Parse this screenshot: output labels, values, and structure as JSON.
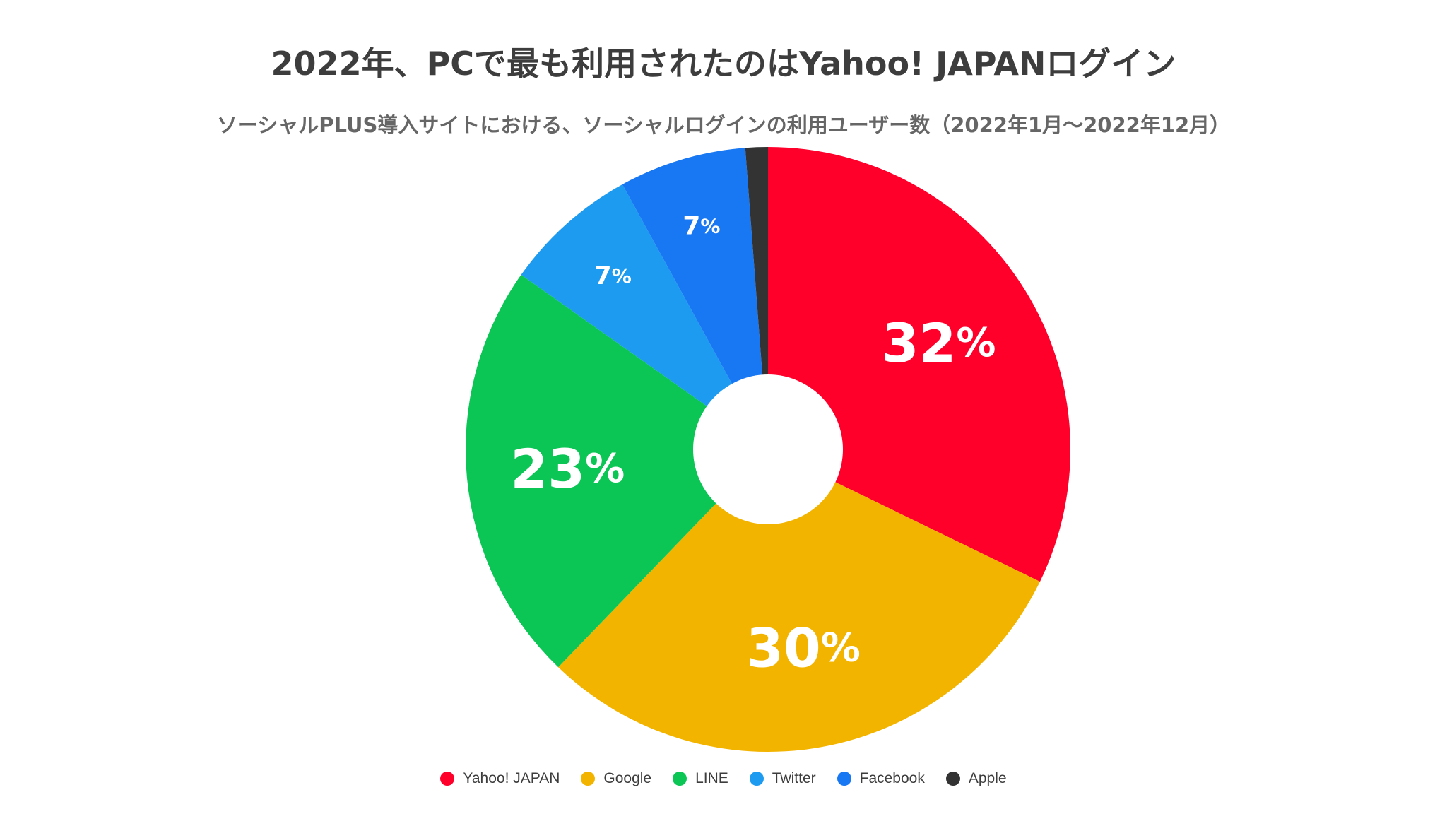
{
  "chart_data": {
    "type": "pie",
    "title": "2022年、PCで最も利用されたのはYahoo! JAPANログイン",
    "subtitle": "ソーシャルPLUS導入サイトにおける、ソーシャルログインの利用ユーザー数（2022年1月〜2022年12月）",
    "donut": true,
    "legend_position": "bottom",
    "label_color": "#ffffff",
    "slices": [
      {
        "name": "Yahoo! JAPAN",
        "value": 32.2,
        "label": "32",
        "unit": "%",
        "color": "#ff002b"
      },
      {
        "name": "Google",
        "value": 30.0,
        "label": "30",
        "unit": "%",
        "color": "#f3b400"
      },
      {
        "name": "LINE",
        "value": 22.6,
        "label": "23",
        "unit": "%",
        "color": "#0bc655"
      },
      {
        "name": "Twitter",
        "value": 7.2,
        "label": "7",
        "unit": "%",
        "color": "#1d9bf0"
      },
      {
        "name": "Facebook",
        "value": 6.8,
        "label": "7",
        "unit": "%",
        "color": "#1877f2"
      },
      {
        "name": "Apple",
        "value": 1.2,
        "label": "",
        "unit": "",
        "color": "#333333"
      }
    ]
  }
}
